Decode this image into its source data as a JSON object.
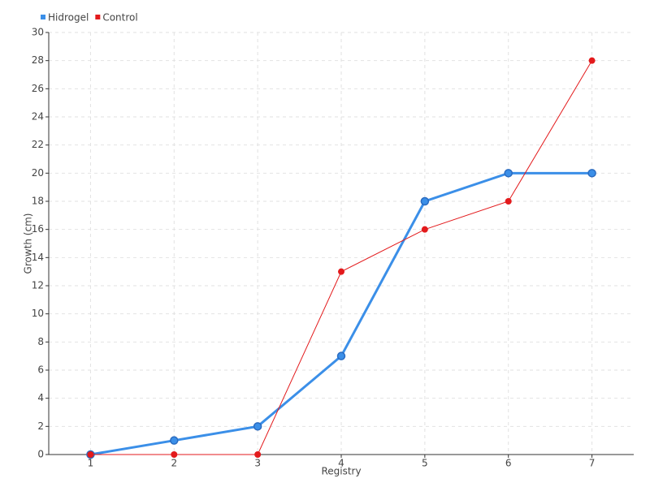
{
  "chart_data": {
    "type": "line",
    "x": [
      1,
      2,
      3,
      4,
      5,
      6,
      7
    ],
    "xlabel": "Registry",
    "ylabel": "Growth (cm)",
    "xlim": [
      0.5,
      7.5
    ],
    "xticks": [
      1,
      2,
      3,
      4,
      5,
      6,
      7
    ],
    "ylim": [
      0,
      30
    ],
    "yticks": [
      0,
      2,
      4,
      6,
      8,
      10,
      12,
      14,
      16,
      18,
      20,
      22,
      24,
      26,
      28,
      30
    ],
    "grid": true,
    "legend": "top-left",
    "series": [
      {
        "name": "Hidrogel",
        "color": "#3b8fe8",
        "values": [
          0,
          1,
          2,
          7,
          18,
          20,
          20
        ]
      },
      {
        "name": "Control",
        "color": "#e31a1c",
        "values": [
          0,
          0,
          0,
          13,
          16,
          18,
          28
        ]
      }
    ]
  }
}
